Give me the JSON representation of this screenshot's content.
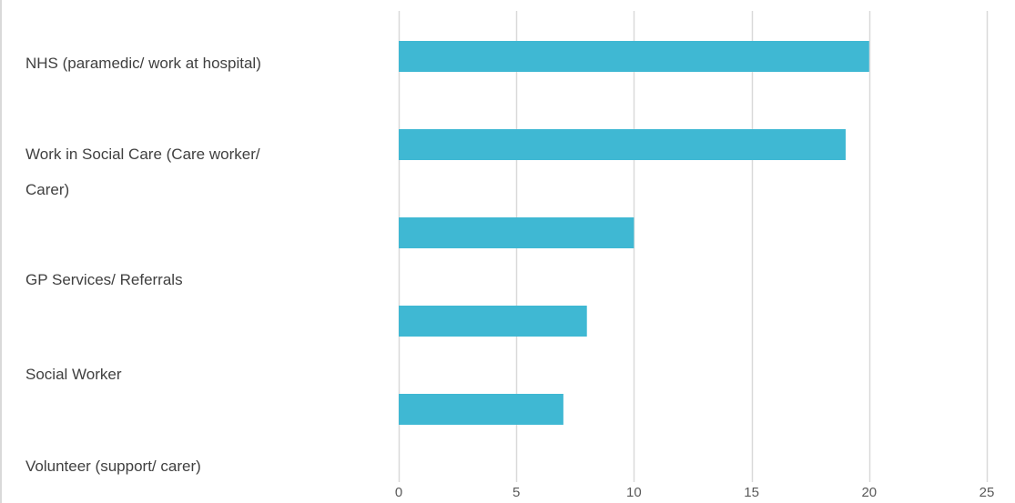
{
  "chart_data": {
    "type": "bar",
    "orientation": "horizontal",
    "category_labels": [
      [
        "NHS (paramedic/ work at hospital)"
      ],
      [
        "Work in Social Care (Care worker/",
        "Carer)"
      ],
      [
        "GP Services/ Referrals"
      ],
      [
        "Social Worker"
      ],
      [
        "Volunteer (support/ carer)"
      ]
    ],
    "values": [
      20,
      19,
      10,
      8,
      7
    ],
    "xlim": [
      0,
      25
    ],
    "x_ticks": [
      0,
      5,
      10,
      15,
      20,
      25
    ],
    "x_tick_labels": [
      "0",
      "5",
      "10",
      "15",
      "20",
      "25"
    ],
    "bar_color": "#3fb8d3",
    "gridline_color": "#d9d9d9",
    "grid": true,
    "legend": "none"
  }
}
